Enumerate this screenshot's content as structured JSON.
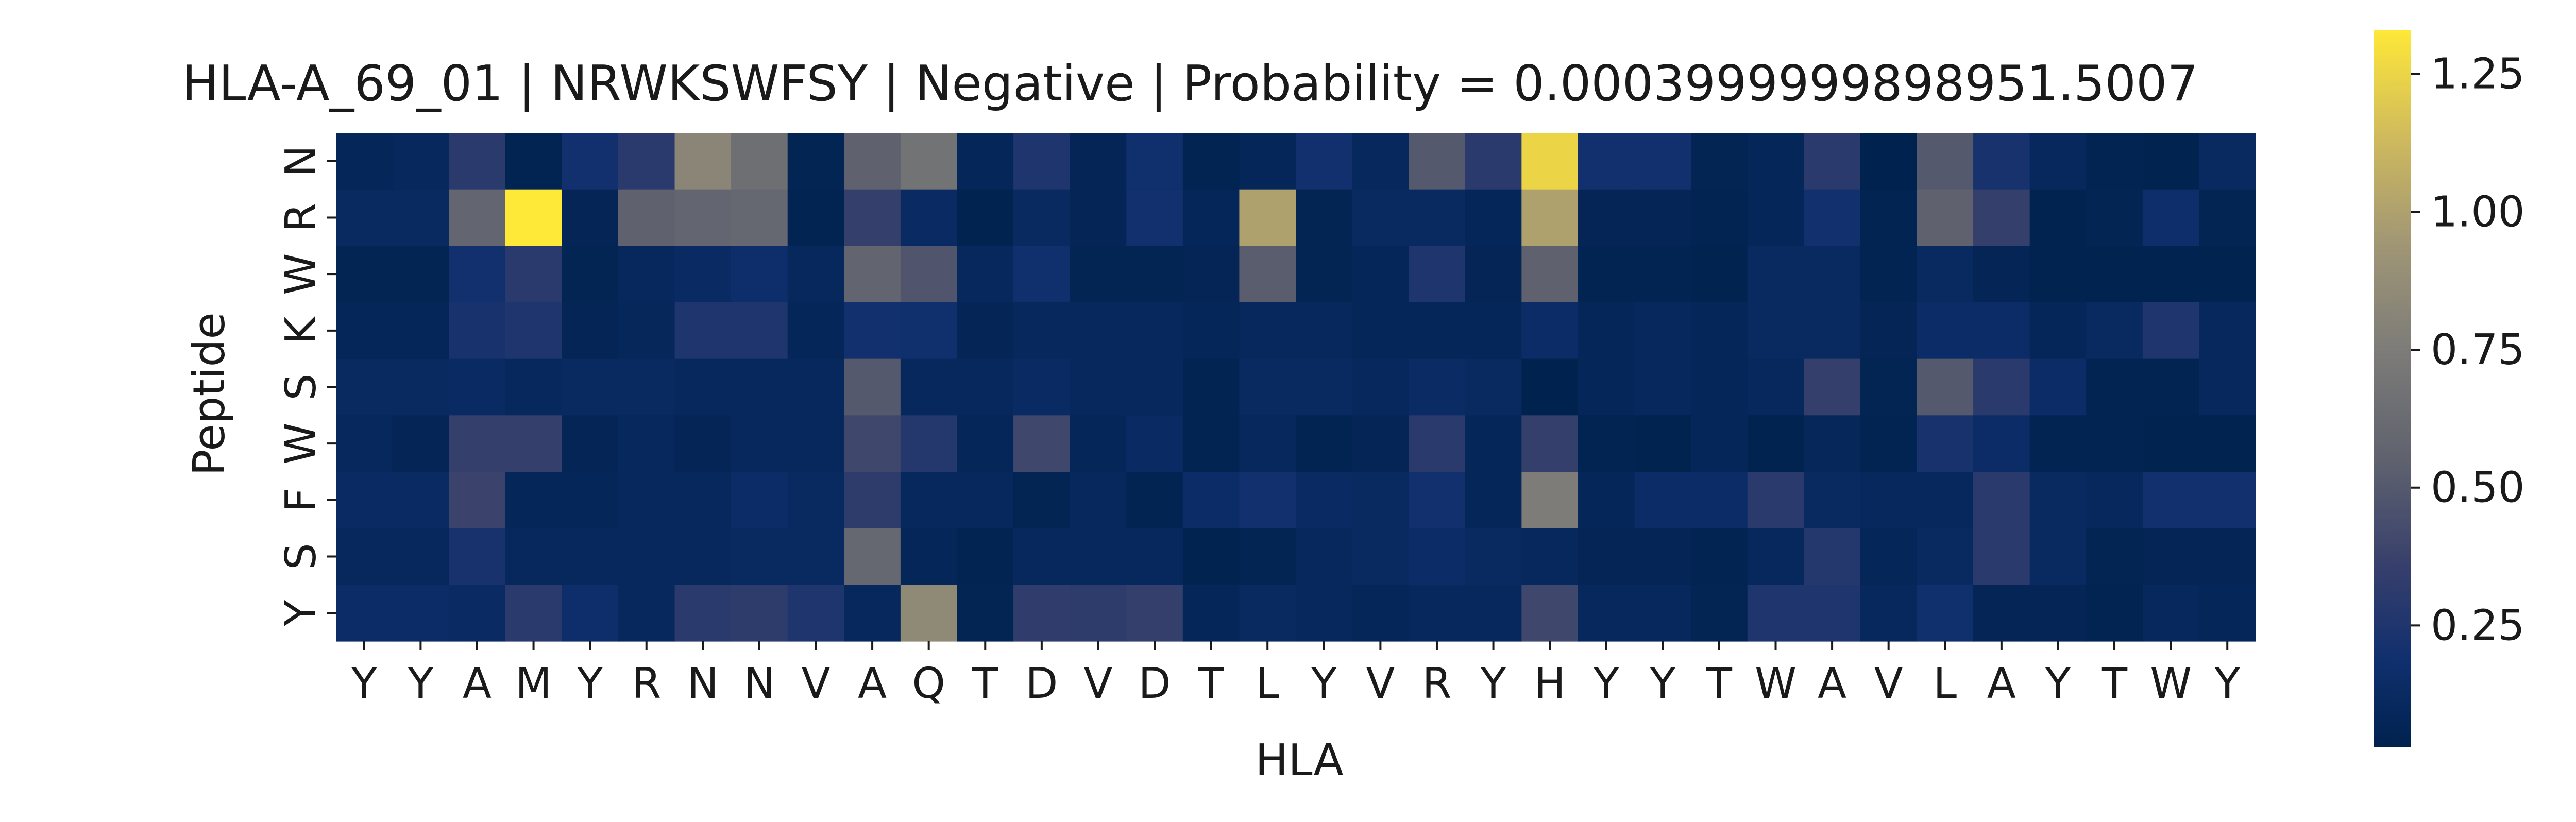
{
  "chart_data": {
    "type": "heatmap",
    "title": "HLA-A_69_01 | NRWKSWFSY | Negative | Probability = 0.0003999999898951.5007",
    "xlabel": "HLA",
    "ylabel": "Peptide",
    "x_categories": [
      "Y",
      "Y",
      "A",
      "M",
      "Y",
      "R",
      "N",
      "N",
      "V",
      "A",
      "Q",
      "T",
      "D",
      "V",
      "D",
      "T",
      "L",
      "Y",
      "V",
      "R",
      "Y",
      "H",
      "Y",
      "Y",
      "T",
      "W",
      "A",
      "V",
      "L",
      "A",
      "Y",
      "T",
      "W",
      "Y"
    ],
    "y_categories": [
      "N",
      "R",
      "W",
      "K",
      "S",
      "W",
      "F",
      "S",
      "Y"
    ],
    "colormap": "cividis",
    "colorbar": {
      "vmin": 0.03,
      "vmax": 1.33,
      "ticks": [
        0.25,
        0.5,
        0.75,
        1.0,
        1.25
      ],
      "tick_labels": [
        "0.25",
        "0.50",
        "0.75",
        "1.00",
        "1.25"
      ]
    },
    "values": [
      [
        0.08,
        0.1,
        0.3,
        0.05,
        0.2,
        0.3,
        0.82,
        0.65,
        0.06,
        0.55,
        0.68,
        0.08,
        0.25,
        0.07,
        0.18,
        0.05,
        0.08,
        0.2,
        0.1,
        0.5,
        0.3,
        1.25,
        0.2,
        0.2,
        0.06,
        0.08,
        0.3,
        0.03,
        0.5,
        0.22,
        0.1,
        0.05,
        0.04,
        0.12
      ],
      [
        0.12,
        0.12,
        0.58,
        1.33,
        0.07,
        0.55,
        0.58,
        0.6,
        0.05,
        0.35,
        0.13,
        0.04,
        0.12,
        0.07,
        0.2,
        0.08,
        1.0,
        0.06,
        0.12,
        0.12,
        0.08,
        1.0,
        0.07,
        0.07,
        0.05,
        0.08,
        0.2,
        0.05,
        0.55,
        0.35,
        0.04,
        0.06,
        0.17,
        0.06
      ],
      [
        0.06,
        0.06,
        0.2,
        0.3,
        0.06,
        0.1,
        0.13,
        0.17,
        0.1,
        0.57,
        0.48,
        0.1,
        0.18,
        0.06,
        0.06,
        0.07,
        0.52,
        0.06,
        0.08,
        0.25,
        0.07,
        0.55,
        0.05,
        0.05,
        0.04,
        0.12,
        0.12,
        0.05,
        0.12,
        0.07,
        0.04,
        0.04,
        0.04,
        0.04
      ],
      [
        0.08,
        0.08,
        0.22,
        0.25,
        0.07,
        0.09,
        0.25,
        0.25,
        0.08,
        0.2,
        0.18,
        0.07,
        0.1,
        0.1,
        0.1,
        0.08,
        0.1,
        0.1,
        0.08,
        0.08,
        0.08,
        0.15,
        0.08,
        0.1,
        0.08,
        0.12,
        0.12,
        0.07,
        0.15,
        0.15,
        0.08,
        0.12,
        0.25,
        0.1
      ],
      [
        0.12,
        0.12,
        0.13,
        0.1,
        0.12,
        0.12,
        0.1,
        0.1,
        0.1,
        0.5,
        0.1,
        0.1,
        0.13,
        0.1,
        0.1,
        0.05,
        0.12,
        0.12,
        0.1,
        0.14,
        0.12,
        0.03,
        0.08,
        0.1,
        0.08,
        0.1,
        0.35,
        0.06,
        0.5,
        0.3,
        0.15,
        0.05,
        0.05,
        0.1
      ],
      [
        0.1,
        0.07,
        0.35,
        0.35,
        0.07,
        0.1,
        0.07,
        0.1,
        0.1,
        0.4,
        0.28,
        0.08,
        0.4,
        0.08,
        0.13,
        0.05,
        0.1,
        0.05,
        0.07,
        0.3,
        0.08,
        0.35,
        0.05,
        0.04,
        0.08,
        0.04,
        0.09,
        0.05,
        0.22,
        0.15,
        0.05,
        0.05,
        0.04,
        0.04
      ],
      [
        0.13,
        0.13,
        0.38,
        0.08,
        0.08,
        0.1,
        0.1,
        0.15,
        0.12,
        0.32,
        0.1,
        0.1,
        0.06,
        0.1,
        0.05,
        0.15,
        0.2,
        0.13,
        0.12,
        0.2,
        0.08,
        0.75,
        0.08,
        0.15,
        0.15,
        0.3,
        0.12,
        0.1,
        0.1,
        0.3,
        0.12,
        0.1,
        0.2,
        0.2
      ],
      [
        0.1,
        0.1,
        0.22,
        0.1,
        0.1,
        0.1,
        0.1,
        0.12,
        0.12,
        0.6,
        0.08,
        0.05,
        0.1,
        0.1,
        0.1,
        0.04,
        0.06,
        0.1,
        0.12,
        0.15,
        0.12,
        0.1,
        0.07,
        0.07,
        0.05,
        0.1,
        0.28,
        0.08,
        0.12,
        0.3,
        0.12,
        0.06,
        0.07,
        0.07
      ],
      [
        0.15,
        0.15,
        0.13,
        0.3,
        0.17,
        0.1,
        0.3,
        0.32,
        0.25,
        0.1,
        0.85,
        0.06,
        0.33,
        0.32,
        0.35,
        0.08,
        0.12,
        0.1,
        0.08,
        0.1,
        0.1,
        0.4,
        0.1,
        0.1,
        0.06,
        0.25,
        0.25,
        0.1,
        0.18,
        0.07,
        0.07,
        0.05,
        0.1,
        0.08
      ]
    ]
  }
}
